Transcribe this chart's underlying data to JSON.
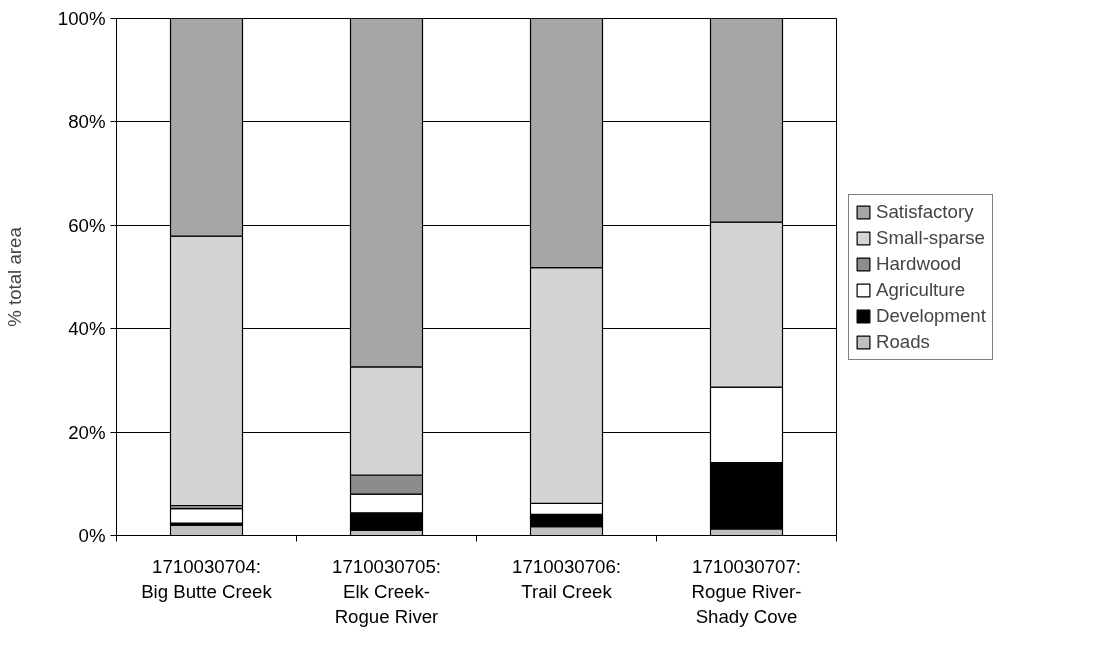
{
  "chart_data": {
    "type": "bar",
    "stacked": true,
    "ylabel": "% total area",
    "categories": [
      "1710030704:\nBig Butte Creek",
      "1710030705:\nElk Creek-\nRogue River",
      "1710030706:\nTrail Creek",
      "1710030707:\nRogue River-\nShady Cove"
    ],
    "series": [
      {
        "name": "Roads",
        "color": "#c0c0c0",
        "values": [
          2.0,
          1.0,
          1.7,
          1.3
        ]
      },
      {
        "name": "Development",
        "color": "#000000",
        "values": [
          0.4,
          3.4,
          2.4,
          12.8
        ]
      },
      {
        "name": "Agriculture",
        "color": "#ffffff",
        "values": [
          2.8,
          3.6,
          2.1,
          14.6
        ]
      },
      {
        "name": "Hardwood",
        "color": "#8c8c8c",
        "values": [
          0.6,
          3.7,
          null,
          null
        ]
      },
      {
        "name": "Small-sparse",
        "color": "#d4d4d4",
        "values": [
          52.1,
          20.9,
          45.6,
          31.9
        ]
      },
      {
        "name": "Satisfactory",
        "color": "#a6a6a6",
        "values": [
          42.1,
          67.4,
          48.2,
          39.4
        ]
      }
    ],
    "ylim": [
      0,
      100
    ],
    "yticks": [
      {
        "value": 0,
        "label": "0%"
      },
      {
        "value": 20,
        "label": "20%"
      },
      {
        "value": 40,
        "label": "40%"
      },
      {
        "value": 60,
        "label": "60%"
      },
      {
        "value": 80,
        "label": "80%"
      },
      {
        "value": 100,
        "label": "100%"
      }
    ],
    "grid": "y",
    "legend": "right"
  }
}
